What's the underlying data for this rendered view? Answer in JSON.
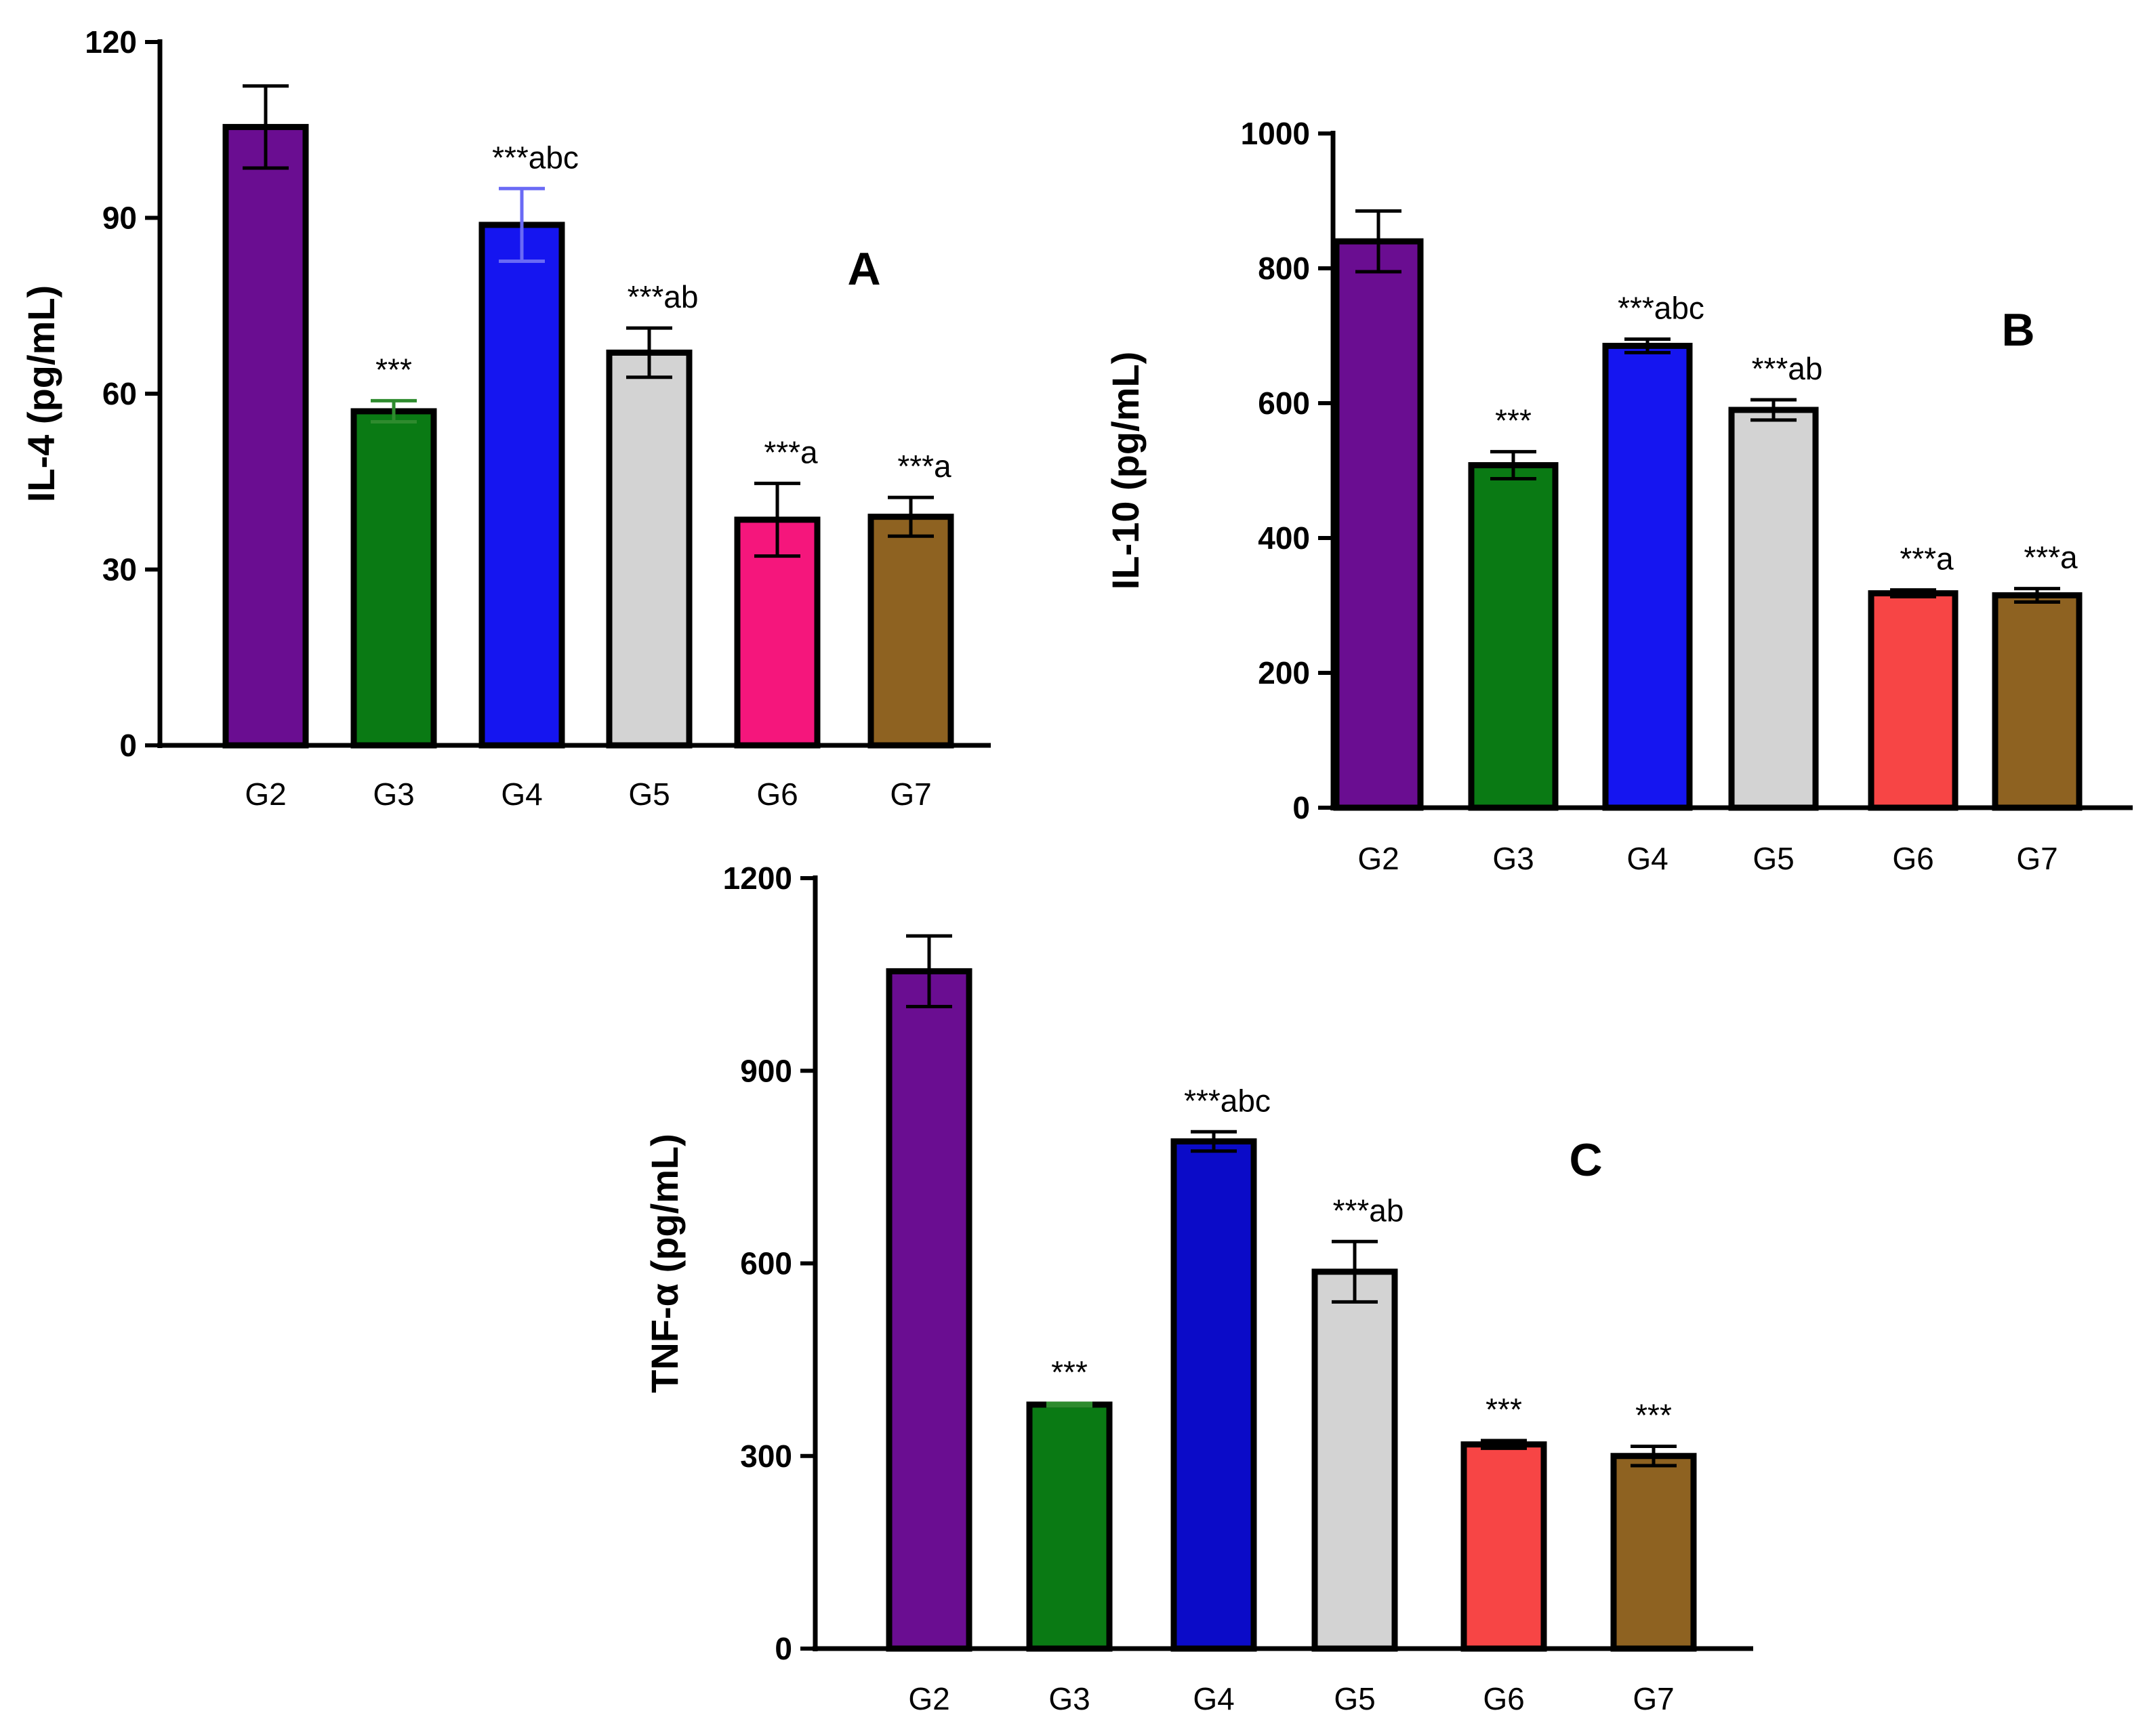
{
  "chart_data": [
    {
      "type": "bar",
      "panel": "A",
      "categories": [
        "G2",
        "G3",
        "G4",
        "G5",
        "G6",
        "G7"
      ],
      "values": [
        105.5,
        57,
        88.8,
        67,
        38.5,
        39
      ],
      "errors": [
        7,
        1.8,
        6.2,
        4.2,
        6.2,
        3.3
      ],
      "ylabel": "IL-4 (pg/mL)",
      "ylim": [
        0,
        120
      ],
      "yticks": [
        "0",
        "30",
        "60",
        "90",
        "120"
      ],
      "significance": [
        "",
        "***",
        "***abc",
        "***ab",
        "***a",
        "***a"
      ],
      "colors": [
        "#6a0d91",
        "#0a7a14",
        "#1515f0",
        "#d3d3d3",
        "#f5167c",
        "#8e6221"
      ],
      "error_colors": [
        "#000000",
        "#2e8b2e",
        "#6a6af5",
        "#000000",
        "#000000",
        "#000000"
      ]
    },
    {
      "type": "bar",
      "panel": "B",
      "categories": [
        "G2",
        "G3",
        "G4",
        "G5",
        "G6",
        "G7"
      ],
      "values": [
        840,
        508,
        685,
        590,
        318,
        315
      ],
      "errors": [
        45,
        20,
        10,
        15,
        5,
        10
      ],
      "ylabel": "IL-10 (pg/mL)",
      "ylim": [
        0,
        1000
      ],
      "yticks": [
        "0",
        "200",
        "400",
        "600",
        "800",
        "1000"
      ],
      "significance": [
        "",
        "***",
        "***abc",
        "***ab",
        "***a",
        "***a"
      ],
      "colors": [
        "#6a0d91",
        "#0a7a14",
        "#1515f0",
        "#d3d3d3",
        "#f74545",
        "#8e6221"
      ],
      "error_colors": [
        "#000000",
        "#000000",
        "#000000",
        "#000000",
        "#000000",
        "#000000"
      ]
    },
    {
      "type": "bar",
      "panel": "C",
      "categories": [
        "G2",
        "G3",
        "G4",
        "G5",
        "G6",
        "G7"
      ],
      "values": [
        1055,
        380,
        790,
        587,
        318,
        300
      ],
      "errors": [
        55,
        2,
        15,
        47,
        6,
        15
      ],
      "ylabel": "TNF-α (pg/mL)",
      "ylim": [
        0,
        1200
      ],
      "yticks": [
        "0",
        "300",
        "600",
        "900",
        "1200"
      ],
      "significance": [
        "",
        "***",
        "***abc",
        "***ab",
        "***",
        "***"
      ],
      "colors": [
        "#6a0d91",
        "#0a7a14",
        "#0b0bc8",
        "#d3d3d3",
        "#f74545",
        "#8e6221"
      ],
      "error_colors": [
        "#000000",
        "#2e8b2e",
        "#000000",
        "#000000",
        "#000000",
        "#000000"
      ]
    }
  ]
}
